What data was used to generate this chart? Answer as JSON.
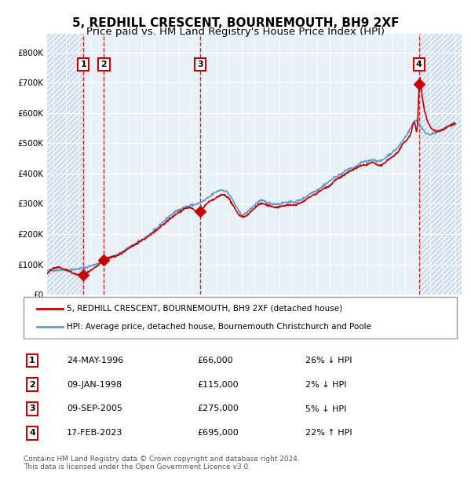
{
  "title": "5, REDHILL CRESCENT, BOURNEMOUTH, BH9 2XF",
  "subtitle": "Price paid vs. HM Land Registry's House Price Index (HPI)",
  "title_fontsize": 11,
  "subtitle_fontsize": 9.5,
  "bg_color": "#dce9f5",
  "plot_bg_color": "#e8f0f8",
  "hatch_color": "#c0cfe0",
  "grid_color": "#ffffff",
  "sales": [
    {
      "num": 1,
      "date_x": 1996.39,
      "price": 66000,
      "label": "24-MAY-1996",
      "pct": "26%",
      "dir": "↓"
    },
    {
      "num": 2,
      "date_x": 1998.03,
      "price": 115000,
      "label": "09-JAN-1998",
      "pct": "2%",
      "dir": "↓"
    },
    {
      "num": 3,
      "date_x": 2005.69,
      "price": 275000,
      "label": "09-SEP-2005",
      "pct": "5%",
      "dir": "↓"
    },
    {
      "num": 4,
      "date_x": 2023.12,
      "price": 695000,
      "label": "17-FEB-2023",
      "pct": "22%",
      "dir": "↑"
    }
  ],
  "xmin": 1993.5,
  "xmax": 2026.5,
  "ymin": 0,
  "ymax": 860000,
  "yticks": [
    0,
    100000,
    200000,
    300000,
    400000,
    500000,
    600000,
    700000,
    800000
  ],
  "ytick_labels": [
    "£0",
    "£100K",
    "£200K",
    "£300K",
    "£400K",
    "£500K",
    "£600K",
    "£700K",
    "£800K"
  ],
  "legend_line1": "5, REDHILL CRESCENT, BOURNEMOUTH, BH9 2XF (detached house)",
  "legend_line2": "HPI: Average price, detached house, Bournemouth Christchurch and Poole",
  "footer": "Contains HM Land Registry data © Crown copyright and database right 2024.\nThis data is licensed under the Open Government Licence v3.0.",
  "sale_color": "#cc0000",
  "hpi_color": "#6699cc",
  "sale_line_color": "#cc0000",
  "hpi_line_color": "#88aad4"
}
